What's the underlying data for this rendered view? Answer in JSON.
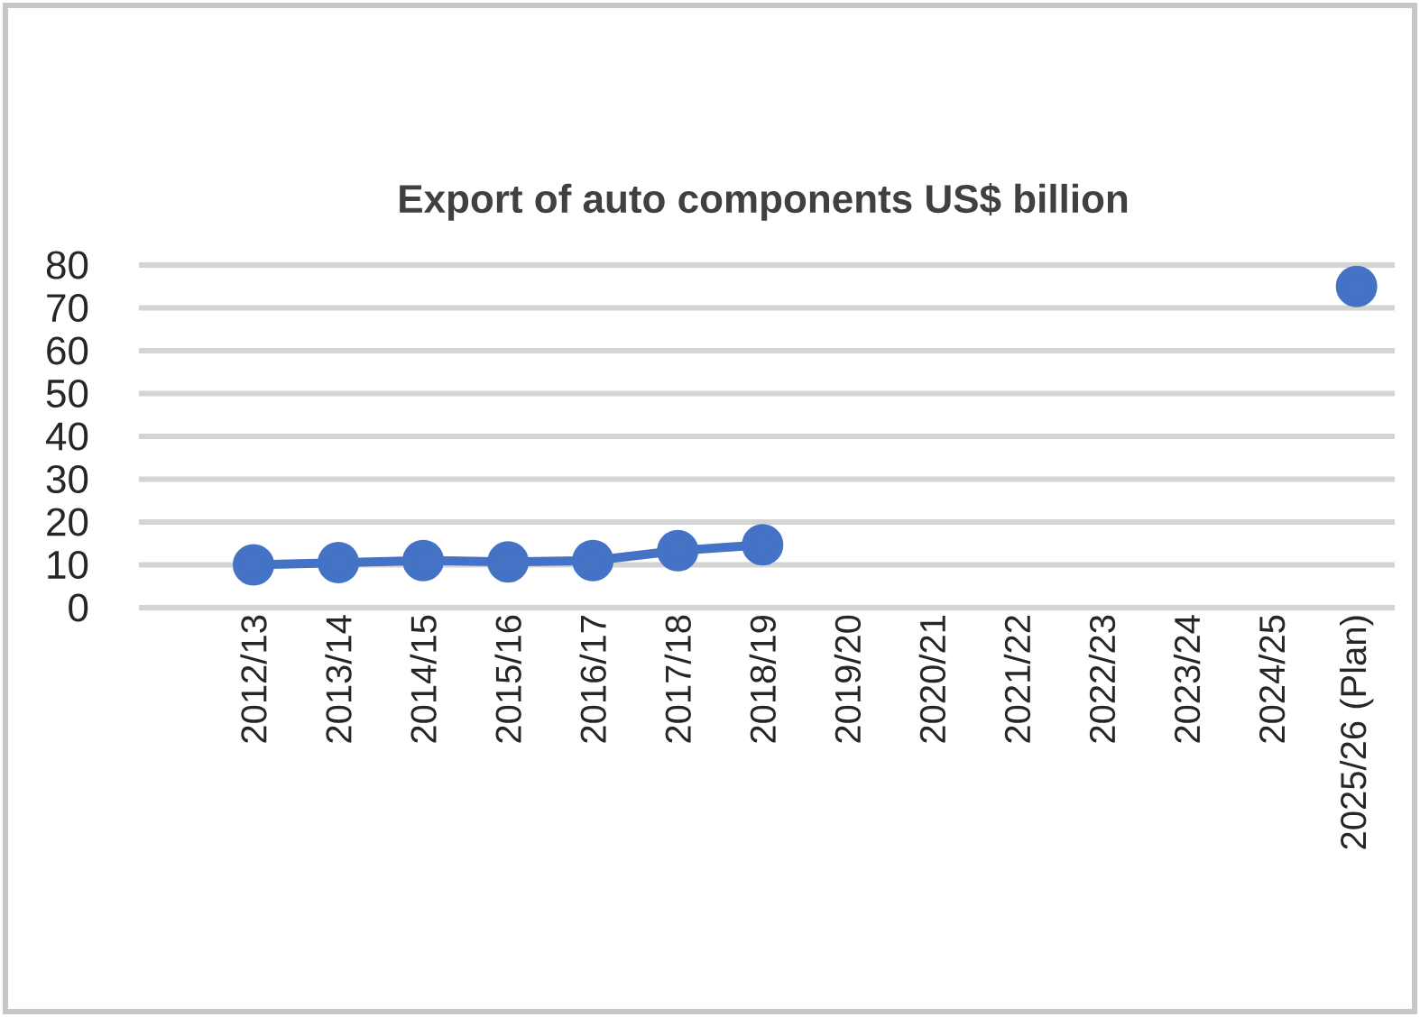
{
  "chart_data": {
    "type": "line",
    "title": "Export of auto components US$ billion",
    "categories": [
      "2012/13",
      "2013/14",
      "2014/15",
      "2015/16",
      "2016/17",
      "2017/18",
      "2018/19",
      "2019/20",
      "2020/21",
      "2021/22",
      "2022/23",
      "2023/24",
      "2024/25",
      "2025/26 (Plan)"
    ],
    "values": [
      10,
      10.5,
      11,
      10.7,
      11,
      13.3,
      14.7,
      null,
      null,
      null,
      null,
      null,
      null,
      75
    ],
    "color": "#4472c4",
    "ylim": [
      0,
      80
    ],
    "yticks": [
      0,
      10,
      20,
      30,
      40,
      50,
      60,
      70,
      80
    ],
    "grid": "y",
    "marker": "circle",
    "line_style": "solid"
  }
}
